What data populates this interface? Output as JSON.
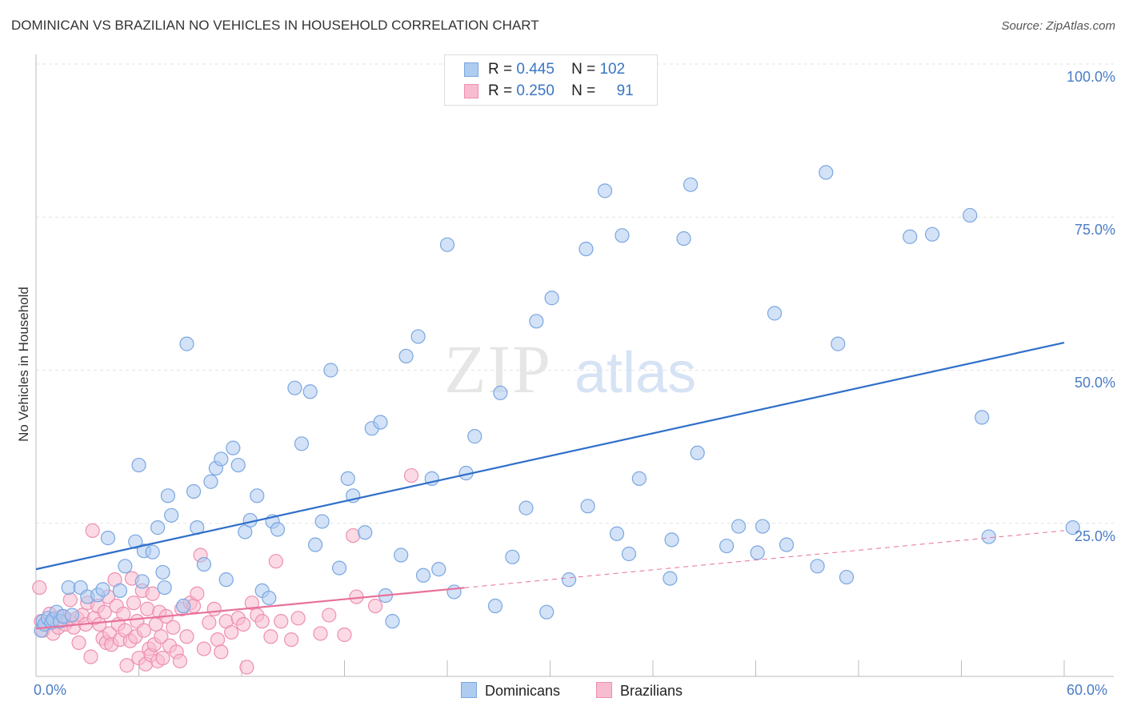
{
  "title": "DOMINICAN VS BRAZILIAN NO VEHICLES IN HOUSEHOLD CORRELATION CHART",
  "source": "Source: ZipAtlas.com",
  "watermark": {
    "zip": "ZIP",
    "atlas": "atlas"
  },
  "legend": {
    "rows": [
      {
        "r_label": "R =",
        "r_value": "0.445",
        "n_label": "N =",
        "n_value": "102"
      },
      {
        "r_label": "R =",
        "r_value": "0.250",
        "n_label": "N =",
        "n_value": "91"
      }
    ]
  },
  "bottom_legend": [
    "Dominicans",
    "Brazilians"
  ],
  "colors": {
    "dominicans_fill": "#aecbf0",
    "dominicans_stroke": "#7aa7e0",
    "dominicans_line": "#2f6fc9",
    "brazilians_fill": "#f7bcd0",
    "brazilians_stroke": "#ee8fb0",
    "brazilians_line": "#e8709a",
    "tick_text": "#4a7cc7",
    "grid": "#e3e3e3"
  },
  "chart_data": {
    "type": "scatter",
    "title": "DOMINICAN VS BRAZILIAN NO VEHICLES IN HOUSEHOLD CORRELATION CHART",
    "xlabel": "",
    "ylabel": "No Vehicles in Household",
    "xlim": [
      0,
      60
    ],
    "ylim": [
      0,
      100
    ],
    "x_tick_labels": [
      "0.0%",
      "60.0%"
    ],
    "y_tick_labels": [
      "25.0%",
      "50.0%",
      "75.0%",
      "100.0%"
    ],
    "y_ticks": [
      25,
      50,
      75,
      100
    ],
    "grid": true,
    "legend_position": "top-center",
    "series": [
      {
        "name": "Dominicans",
        "r": 0.445,
        "n": 102,
        "trend": {
          "x": [
            0,
            60
          ],
          "y": [
            17.5,
            54.5
          ],
          "style": "solid"
        },
        "points": [
          [
            0.3,
            7.5
          ],
          [
            0.4,
            9.0
          ],
          [
            0.5,
            8.5
          ],
          [
            0.7,
            9.5
          ],
          [
            0.9,
            8.8
          ],
          [
            1.0,
            9.3
          ],
          [
            1.2,
            10.5
          ],
          [
            1.4,
            9.0
          ],
          [
            1.6,
            9.8
          ],
          [
            1.9,
            14.5
          ],
          [
            2.1,
            10.0
          ],
          [
            2.6,
            14.5
          ],
          [
            3.0,
            13.0
          ],
          [
            3.6,
            13.3
          ],
          [
            3.9,
            14.2
          ],
          [
            4.2,
            22.6
          ],
          [
            4.9,
            14.0
          ],
          [
            5.2,
            18.0
          ],
          [
            5.8,
            22.0
          ],
          [
            6.0,
            34.5
          ],
          [
            6.3,
            20.5
          ],
          [
            6.8,
            20.3
          ],
          [
            7.1,
            24.3
          ],
          [
            7.4,
            17.0
          ],
          [
            7.7,
            29.5
          ],
          [
            7.9,
            26.3
          ],
          [
            8.6,
            11.5
          ],
          [
            8.8,
            54.3
          ],
          [
            9.2,
            30.2
          ],
          [
            9.4,
            24.3
          ],
          [
            9.8,
            18.3
          ],
          [
            10.2,
            31.8
          ],
          [
            10.5,
            34.0
          ],
          [
            10.8,
            35.5
          ],
          [
            11.1,
            15.8
          ],
          [
            11.5,
            37.3
          ],
          [
            11.8,
            34.5
          ],
          [
            12.2,
            23.6
          ],
          [
            12.5,
            25.5
          ],
          [
            12.9,
            29.5
          ],
          [
            13.2,
            14.0
          ],
          [
            13.6,
            12.8
          ],
          [
            13.8,
            25.3
          ],
          [
            14.1,
            24.0
          ],
          [
            15.1,
            47.1
          ],
          [
            15.5,
            38.0
          ],
          [
            16.0,
            46.5
          ],
          [
            16.3,
            21.5
          ],
          [
            16.7,
            25.3
          ],
          [
            17.2,
            50.0
          ],
          [
            17.7,
            17.7
          ],
          [
            18.2,
            32.3
          ],
          [
            18.5,
            29.5
          ],
          [
            19.2,
            23.5
          ],
          [
            19.6,
            40.5
          ],
          [
            20.1,
            41.5
          ],
          [
            20.4,
            13.2
          ],
          [
            20.8,
            9.0
          ],
          [
            21.3,
            19.8
          ],
          [
            21.6,
            52.3
          ],
          [
            22.3,
            55.5
          ],
          [
            22.6,
            16.5
          ],
          [
            23.1,
            32.3
          ],
          [
            23.5,
            17.5
          ],
          [
            24.0,
            70.5
          ],
          [
            24.4,
            13.8
          ],
          [
            25.1,
            33.2
          ],
          [
            25.6,
            39.2
          ],
          [
            26.8,
            11.5
          ],
          [
            27.1,
            46.3
          ],
          [
            27.8,
            19.5
          ],
          [
            28.6,
            27.5
          ],
          [
            29.2,
            58.0
          ],
          [
            29.8,
            10.5
          ],
          [
            30.1,
            61.8
          ],
          [
            31.1,
            15.8
          ],
          [
            32.1,
            69.8
          ],
          [
            32.2,
            27.8
          ],
          [
            33.2,
            79.3
          ],
          [
            33.9,
            23.3
          ],
          [
            34.2,
            72.0
          ],
          [
            34.6,
            20.0
          ],
          [
            35.2,
            32.3
          ],
          [
            37.0,
            16.0
          ],
          [
            37.1,
            22.3
          ],
          [
            37.8,
            71.5
          ],
          [
            38.2,
            80.3
          ],
          [
            38.6,
            36.5
          ],
          [
            40.3,
            21.3
          ],
          [
            41.0,
            24.5
          ],
          [
            42.1,
            20.2
          ],
          [
            42.4,
            24.5
          ],
          [
            43.1,
            59.3
          ],
          [
            43.8,
            21.5
          ],
          [
            45.6,
            18.0
          ],
          [
            46.1,
            82.3
          ],
          [
            46.8,
            54.3
          ],
          [
            47.3,
            16.2
          ],
          [
            51.0,
            71.8
          ],
          [
            52.3,
            72.2
          ],
          [
            54.5,
            75.3
          ],
          [
            55.2,
            42.3
          ],
          [
            55.6,
            22.8
          ],
          [
            60.5,
            24.3
          ],
          [
            7.5,
            14.5
          ],
          [
            6.2,
            15.5
          ]
        ]
      },
      {
        "name": "Brazilians",
        "r": 0.25,
        "n": 91,
        "trend": {
          "x": [
            0,
            60
          ],
          "y": [
            7.8,
            23.8
          ],
          "solid_until_x": 25,
          "style": "solid-then-dashed"
        },
        "points": [
          [
            0.2,
            14.5
          ],
          [
            0.3,
            9.0
          ],
          [
            0.4,
            7.5
          ],
          [
            0.6,
            8.8
          ],
          [
            0.8,
            10.2
          ],
          [
            1.0,
            7.0
          ],
          [
            1.1,
            9.5
          ],
          [
            1.3,
            8.0
          ],
          [
            1.5,
            9.8
          ],
          [
            1.7,
            8.5
          ],
          [
            1.9,
            9.2
          ],
          [
            2.0,
            12.5
          ],
          [
            2.2,
            8.0
          ],
          [
            2.4,
            9.5
          ],
          [
            2.5,
            5.5
          ],
          [
            2.7,
            10.0
          ],
          [
            2.9,
            8.5
          ],
          [
            3.0,
            12.0
          ],
          [
            3.2,
            3.2
          ],
          [
            3.3,
            23.8
          ],
          [
            3.4,
            9.5
          ],
          [
            3.6,
            11.5
          ],
          [
            3.7,
            8.5
          ],
          [
            3.9,
            6.2
          ],
          [
            4.0,
            10.5
          ],
          [
            4.1,
            5.5
          ],
          [
            4.2,
            13.0
          ],
          [
            4.3,
            7.0
          ],
          [
            4.4,
            5.2
          ],
          [
            4.6,
            15.8
          ],
          [
            4.7,
            11.5
          ],
          [
            4.8,
            8.5
          ],
          [
            4.9,
            6.0
          ],
          [
            5.1,
            10.2
          ],
          [
            5.2,
            7.5
          ],
          [
            5.3,
            1.8
          ],
          [
            5.5,
            5.8
          ],
          [
            5.6,
            16.0
          ],
          [
            5.7,
            12.0
          ],
          [
            5.8,
            6.5
          ],
          [
            5.9,
            9.0
          ],
          [
            6.0,
            3.0
          ],
          [
            6.2,
            14.0
          ],
          [
            6.3,
            7.5
          ],
          [
            6.4,
            2.0
          ],
          [
            6.5,
            11.0
          ],
          [
            6.6,
            4.5
          ],
          [
            6.7,
            3.5
          ],
          [
            6.8,
            13.5
          ],
          [
            6.9,
            5.2
          ],
          [
            7.0,
            8.5
          ],
          [
            7.1,
            2.5
          ],
          [
            7.2,
            10.5
          ],
          [
            7.3,
            6.5
          ],
          [
            7.4,
            3.0
          ],
          [
            7.6,
            9.8
          ],
          [
            7.8,
            5.0
          ],
          [
            8.0,
            8.0
          ],
          [
            8.2,
            4.0
          ],
          [
            8.4,
            2.5
          ],
          [
            8.5,
            11.0
          ],
          [
            8.8,
            6.5
          ],
          [
            9.0,
            12.0
          ],
          [
            9.2,
            11.5
          ],
          [
            9.4,
            13.5
          ],
          [
            9.6,
            19.8
          ],
          [
            9.8,
            4.5
          ],
          [
            10.1,
            8.8
          ],
          [
            10.4,
            11.0
          ],
          [
            10.6,
            6.0
          ],
          [
            10.8,
            4.0
          ],
          [
            11.1,
            9.0
          ],
          [
            11.4,
            7.2
          ],
          [
            11.8,
            9.5
          ],
          [
            12.1,
            8.5
          ],
          [
            12.3,
            1.5
          ],
          [
            12.6,
            12.0
          ],
          [
            12.9,
            10.0
          ],
          [
            13.2,
            9.0
          ],
          [
            13.7,
            6.5
          ],
          [
            14.0,
            18.8
          ],
          [
            14.3,
            9.0
          ],
          [
            14.9,
            6.0
          ],
          [
            15.3,
            9.5
          ],
          [
            16.6,
            7.0
          ],
          [
            17.1,
            10.0
          ],
          [
            18.0,
            6.8
          ],
          [
            18.5,
            23.0
          ],
          [
            18.7,
            13.0
          ],
          [
            19.8,
            11.5
          ],
          [
            21.9,
            32.8
          ]
        ]
      }
    ]
  }
}
